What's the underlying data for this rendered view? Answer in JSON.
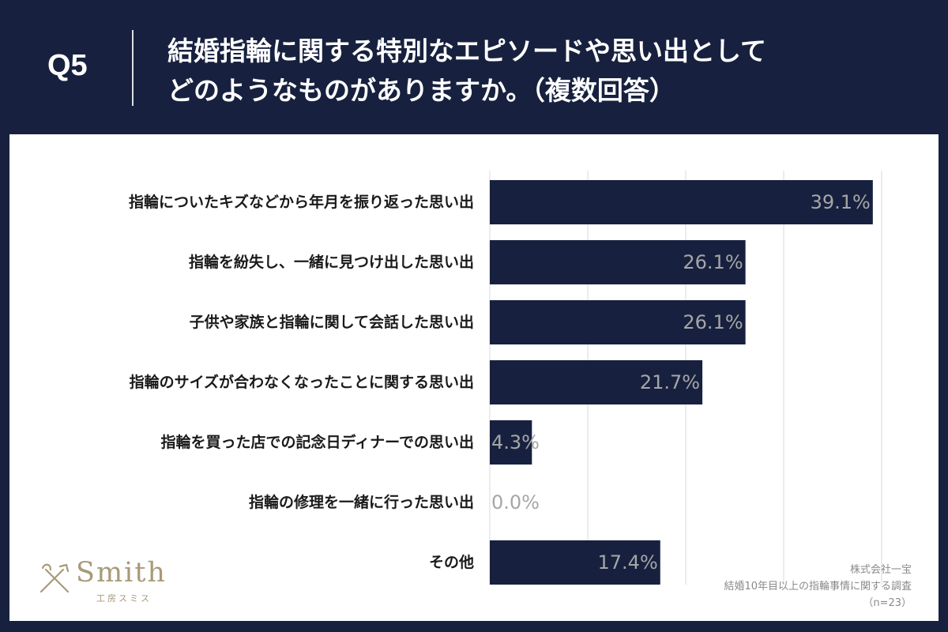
{
  "header": {
    "question_number": "Q5",
    "title_line1": "結婚指輪に関する特別なエピソードや思い出として",
    "title_line2": "どのようなものがありますか。（複数回答）"
  },
  "chart_data": {
    "type": "bar",
    "orientation": "horizontal",
    "title": "結婚指輪に関する特別なエピソードや思い出としてどのようなものがありますか。（複数回答）",
    "categories": [
      "指輪についたキズなどから年月を振り返った思い出",
      "指輪を紛失し、一緒に見つけ出した思い出",
      "子供や家族と指輪に関して会話した思い出",
      "指輪のサイズが合わなくなったことに関する思い出",
      "指輪を買った店での記念日ディナーでの思い出",
      "指輪の修理を一緒に行った思い出",
      "その他"
    ],
    "values": [
      39.1,
      26.1,
      26.1,
      21.7,
      4.3,
      0.0,
      17.4
    ],
    "data_labels": [
      "39.1%",
      "26.1%",
      "26.1%",
      "21.7%",
      "4.3%",
      "0.0%",
      "17.4%"
    ],
    "xlim": [
      0,
      40
    ],
    "grid": true,
    "bar_color": "#17213f",
    "label_color": "#a6a6a6",
    "grid_color": "#d9d9d9"
  },
  "footnote": {
    "company": "株式会社一宝",
    "survey": "結婚10年目以上の指輪事情に関する調査",
    "sample": "（n=23）"
  },
  "logo": {
    "wordmark": "Smith",
    "subtitle": "工房スミス"
  },
  "colors": {
    "header_bg": "#17213f",
    "panel_bg": "#ffffff",
    "logo": "#a89a78"
  }
}
